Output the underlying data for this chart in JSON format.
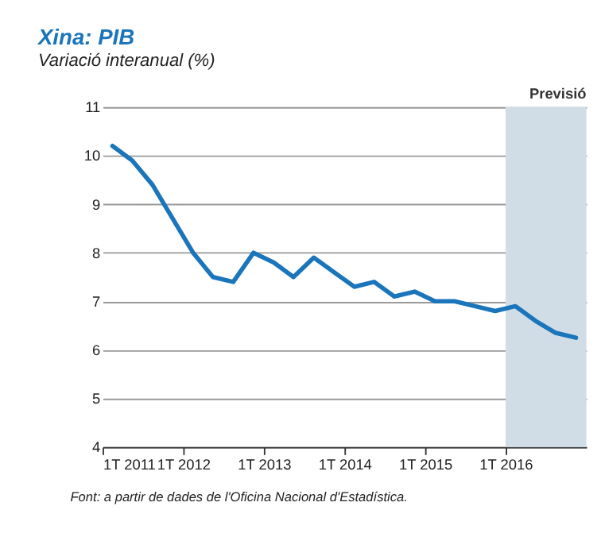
{
  "chart_data": {
    "type": "line",
    "title": "Xina: PIB",
    "subtitle": "Variació interanual (%)",
    "x": [
      "2011-02-15",
      "2011-05-15",
      "2011-08-15",
      "2011-11-15",
      "2012-02-15",
      "2012-05-15",
      "2012-08-15",
      "2012-11-15",
      "2013-02-15",
      "2013-05-15",
      "2013-08-15",
      "2013-11-15",
      "2014-02-15",
      "2014-05-15",
      "2014-08-15",
      "2014-11-15",
      "2015-02-15",
      "2015-05-15",
      "2015-08-15",
      "2015-11-15",
      "2016-02-15",
      "2016-05-15",
      "2016-08-15",
      "2016-11-15"
    ],
    "series": [
      {
        "color": "#1a75bb",
        "values": [
          10.2,
          9.9,
          9.4,
          8.7,
          8.0,
          7.5,
          7.4,
          8.0,
          7.8,
          7.5,
          7.9,
          7.6,
          7.3,
          7.4,
          7.1,
          7.2,
          7.0,
          7.0,
          6.9,
          6.8,
          6.9,
          6.6,
          6.35,
          6.25
        ]
      }
    ],
    "xlim": [
      "2011-01-01",
      "2017-01-01"
    ],
    "xticks": [
      {
        "value": "2011-01-01",
        "label": "1T 2011"
      },
      {
        "value": "2012-01-01",
        "label": "1T  2012"
      },
      {
        "value": "2013-01-01",
        "label": "1T  2013"
      },
      {
        "value": "2014-01-01",
        "label": "1T  2014"
      },
      {
        "value": "2015-01-01",
        "label": "1T  2015"
      },
      {
        "value": "2016-01-01",
        "label": "1T  2016"
      }
    ],
    "ylim": [
      4,
      11
    ],
    "yticks": [
      4,
      5,
      6,
      7,
      8,
      9,
      10,
      11
    ],
    "grid": "y",
    "bands": [
      {
        "axis": "x",
        "from": "2016-01-01",
        "to": "2017-01-01",
        "label": "Previsió",
        "color": "#d0dde6"
      }
    ],
    "annotations": [
      "Font: a partir de dades de l'Oficina Nacional d'Estadística."
    ]
  }
}
